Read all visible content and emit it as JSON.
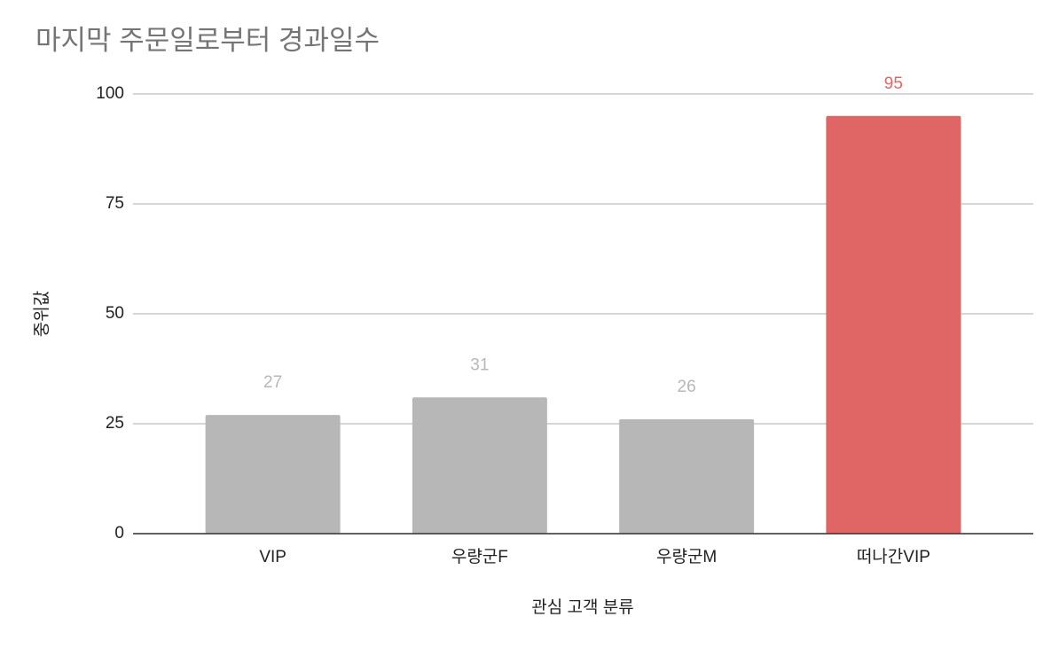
{
  "chart_data": {
    "type": "bar",
    "title": "마지막 주문일로부터 경과일수",
    "x_label": "관심 고객 분류",
    "y_label": "중위값",
    "categories": [
      "VIP",
      "우량군F",
      "우량군M",
      "떠나간VIP"
    ],
    "values": [
      27,
      31,
      26,
      95
    ],
    "colors": [
      "#b7b7b7",
      "#b7b7b7",
      "#b7b7b7",
      "#e06666"
    ],
    "ylim": [
      0,
      100
    ],
    "yticks": [
      0,
      25,
      50,
      75,
      100
    ],
    "grid": true
  }
}
